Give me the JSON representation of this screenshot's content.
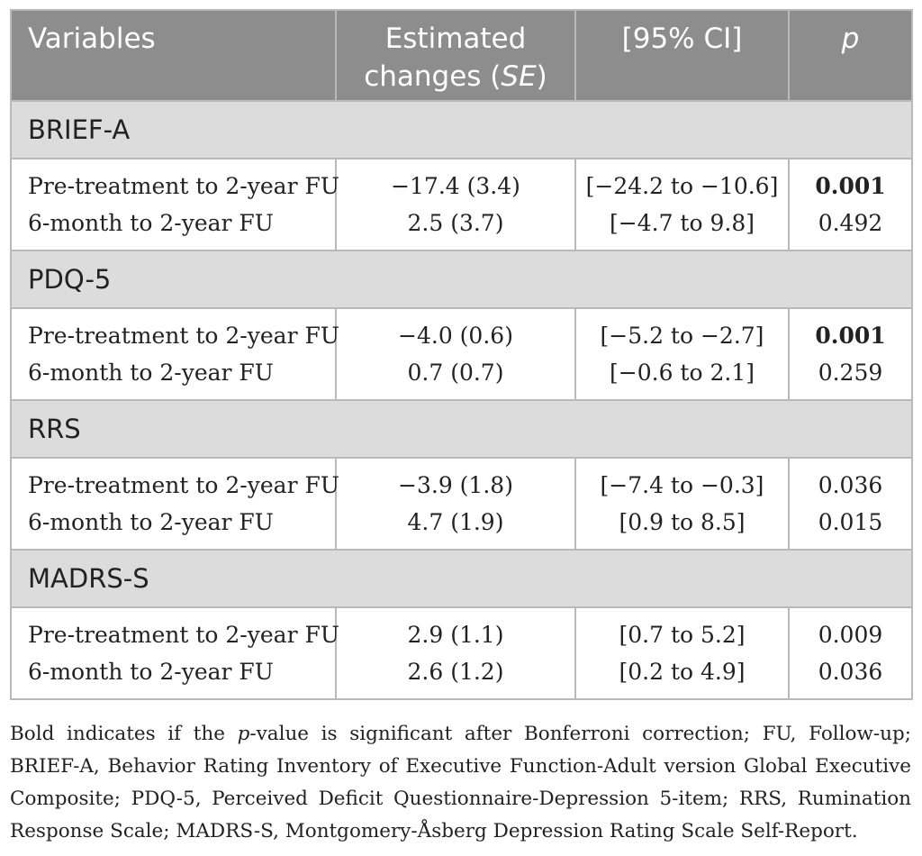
{
  "headers": {
    "variables": "Variables",
    "estimated_line1": "Estimated",
    "estimated_line2_pre": "changes (",
    "estimated_line2_se": "SE",
    "estimated_line2_post": ")",
    "ci": "[95% CI]",
    "p": "p"
  },
  "groups": [
    {
      "name": "BRIEF-A",
      "rows": [
        {
          "label": "Pre-treatment to 2-year FU",
          "estimate": "−17.4 (3.4)",
          "ci": "[−24.2 to −10.6]",
          "p": "0.001",
          "bold": true
        },
        {
          "label": "6-month to 2-year FU",
          "estimate": "2.5 (3.7)",
          "ci": "[−4.7 to 9.8]",
          "p": "0.492",
          "bold": false
        }
      ]
    },
    {
      "name": "PDQ-5",
      "rows": [
        {
          "label": "Pre-treatment to 2-year FU",
          "estimate": "−4.0 (0.6)",
          "ci": "[−5.2 to −2.7]",
          "p": "0.001",
          "bold": true
        },
        {
          "label": "6-month to 2-year FU",
          "estimate": "0.7 (0.7)",
          "ci": "[−0.6 to 2.1]",
          "p": "0.259",
          "bold": false
        }
      ]
    },
    {
      "name": "RRS",
      "rows": [
        {
          "label": "Pre-treatment to 2-year FU",
          "estimate": "−3.9 (1.8)",
          "ci": "[−7.4 to −0.3]",
          "p": "0.036",
          "bold": false
        },
        {
          "label": "6-month to 2-year FU",
          "estimate": "4.7 (1.9)",
          "ci": "[0.9 to 8.5]",
          "p": "0.015",
          "bold": false
        }
      ]
    },
    {
      "name": "MADRS-S",
      "rows": [
        {
          "label": "Pre-treatment to 2-year FU",
          "estimate": "2.9 (1.1)",
          "ci": "[0.7 to 5.2]",
          "p": "0.009",
          "bold": false
        },
        {
          "label": "6-month to 2-year FU",
          "estimate": "2.6 (1.2)",
          "ci": "[0.2 to 4.9]",
          "p": "0.036",
          "bold": false
        }
      ]
    }
  ],
  "footnote": {
    "part1": "Bold indicates if the ",
    "p_italic": "p",
    "part2": "-value is significant after Bonferroni correction; FU, Follow-up; BRIEF-A, Behavior Rating Inventory of Executive Function-Adult version Global Executive Composite; PDQ-5, Perceived Deficit Questionnaire-Depression 5-item; RRS, Rumination Response Scale; MADRS-S, Montgomery-Åsberg Depression Rating Scale Self-Report."
  },
  "colors": {
    "header_bg": "#8d8d8d",
    "group_bg": "#dcdcdc",
    "border": "#b9b9b9",
    "text": "#222222"
  }
}
